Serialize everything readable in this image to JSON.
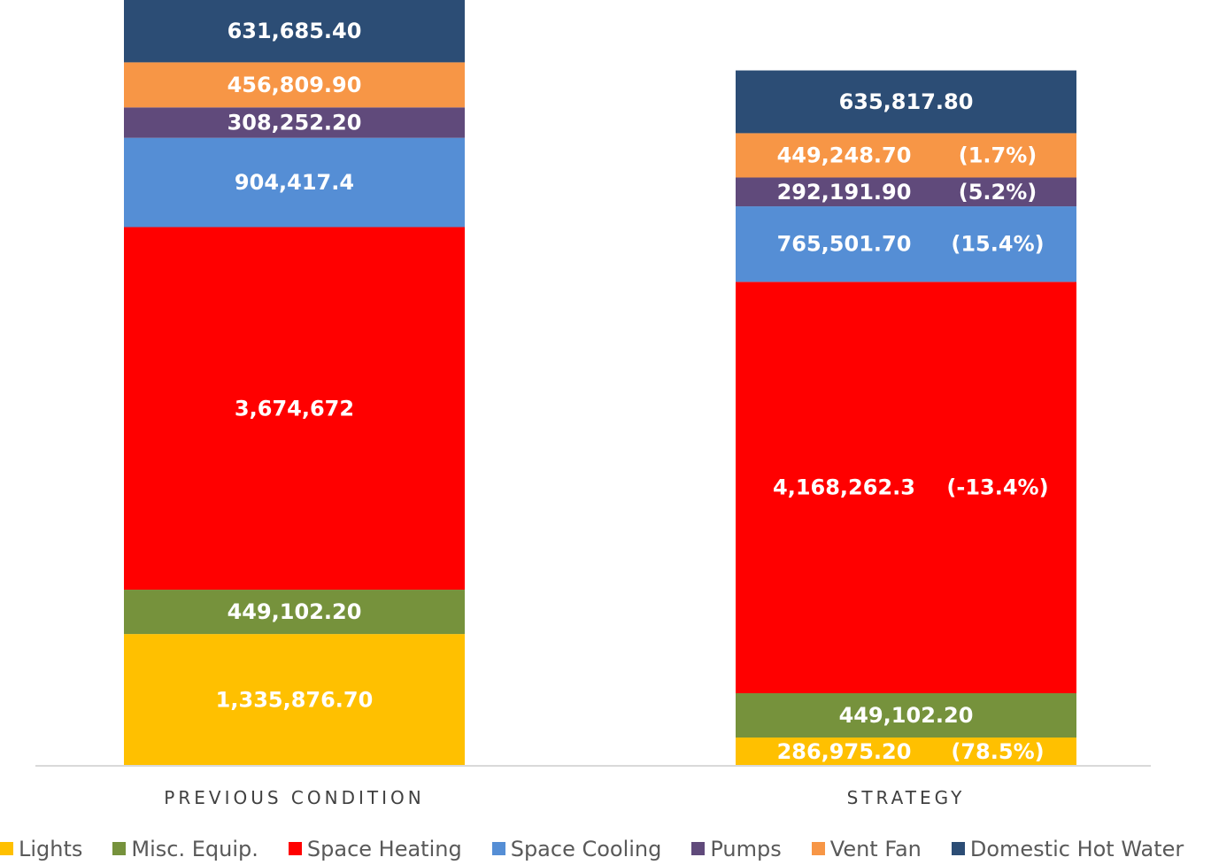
{
  "chart_data": {
    "type": "bar",
    "stacked": true,
    "categories": [
      "PREVIOUS CONDITION",
      "STRATEGY"
    ],
    "series": [
      {
        "name": "Lights",
        "color": "#FFC000",
        "values": [
          1335876.7,
          286975.2
        ],
        "labels": [
          "1,335,876.70",
          "286,975.20"
        ],
        "pct_labels": [
          "",
          "(78.5%)"
        ]
      },
      {
        "name": "Misc. Equip.",
        "color": "#76923C",
        "values": [
          449102.2,
          449102.2
        ],
        "labels": [
          "449,102.20",
          "449,102.20"
        ],
        "pct_labels": [
          "",
          ""
        ]
      },
      {
        "name": "Space Heating",
        "color": "#FF0000",
        "values": [
          3674672,
          4168262.3
        ],
        "labels": [
          "3,674,672",
          "4,168,262.3"
        ],
        "pct_labels": [
          "",
          "(-13.4%)"
        ]
      },
      {
        "name": "Space Cooling",
        "color": "#558ED5",
        "values": [
          904417.4,
          765501.7
        ],
        "labels": [
          "904,417.4",
          "765,501.70"
        ],
        "pct_labels": [
          "",
          "(15.4%)"
        ]
      },
      {
        "name": "Pumps",
        "color": "#604A7B",
        "values": [
          308252.2,
          292191.9
        ],
        "labels": [
          "308,252.20",
          "292,191.90"
        ],
        "pct_labels": [
          "",
          "(5.2%)"
        ]
      },
      {
        "name": "Vent Fan",
        "color": "#F79646",
        "values": [
          456809.9,
          449248.7
        ],
        "labels": [
          "456,809.90",
          "449,248.70"
        ],
        "pct_labels": [
          "",
          "(1.7%)"
        ]
      },
      {
        "name": "Domestic Hot Water",
        "color": "#2C4D75",
        "values": [
          631685.4,
          635817.8
        ],
        "labels": [
          "631,685.40",
          "635,817.80"
        ],
        "pct_labels": [
          "",
          ""
        ]
      }
    ],
    "title": "",
    "xlabel": "",
    "ylabel": "",
    "ylim": [
      0,
      7760816
    ],
    "grid": false,
    "legend": "bottom"
  }
}
